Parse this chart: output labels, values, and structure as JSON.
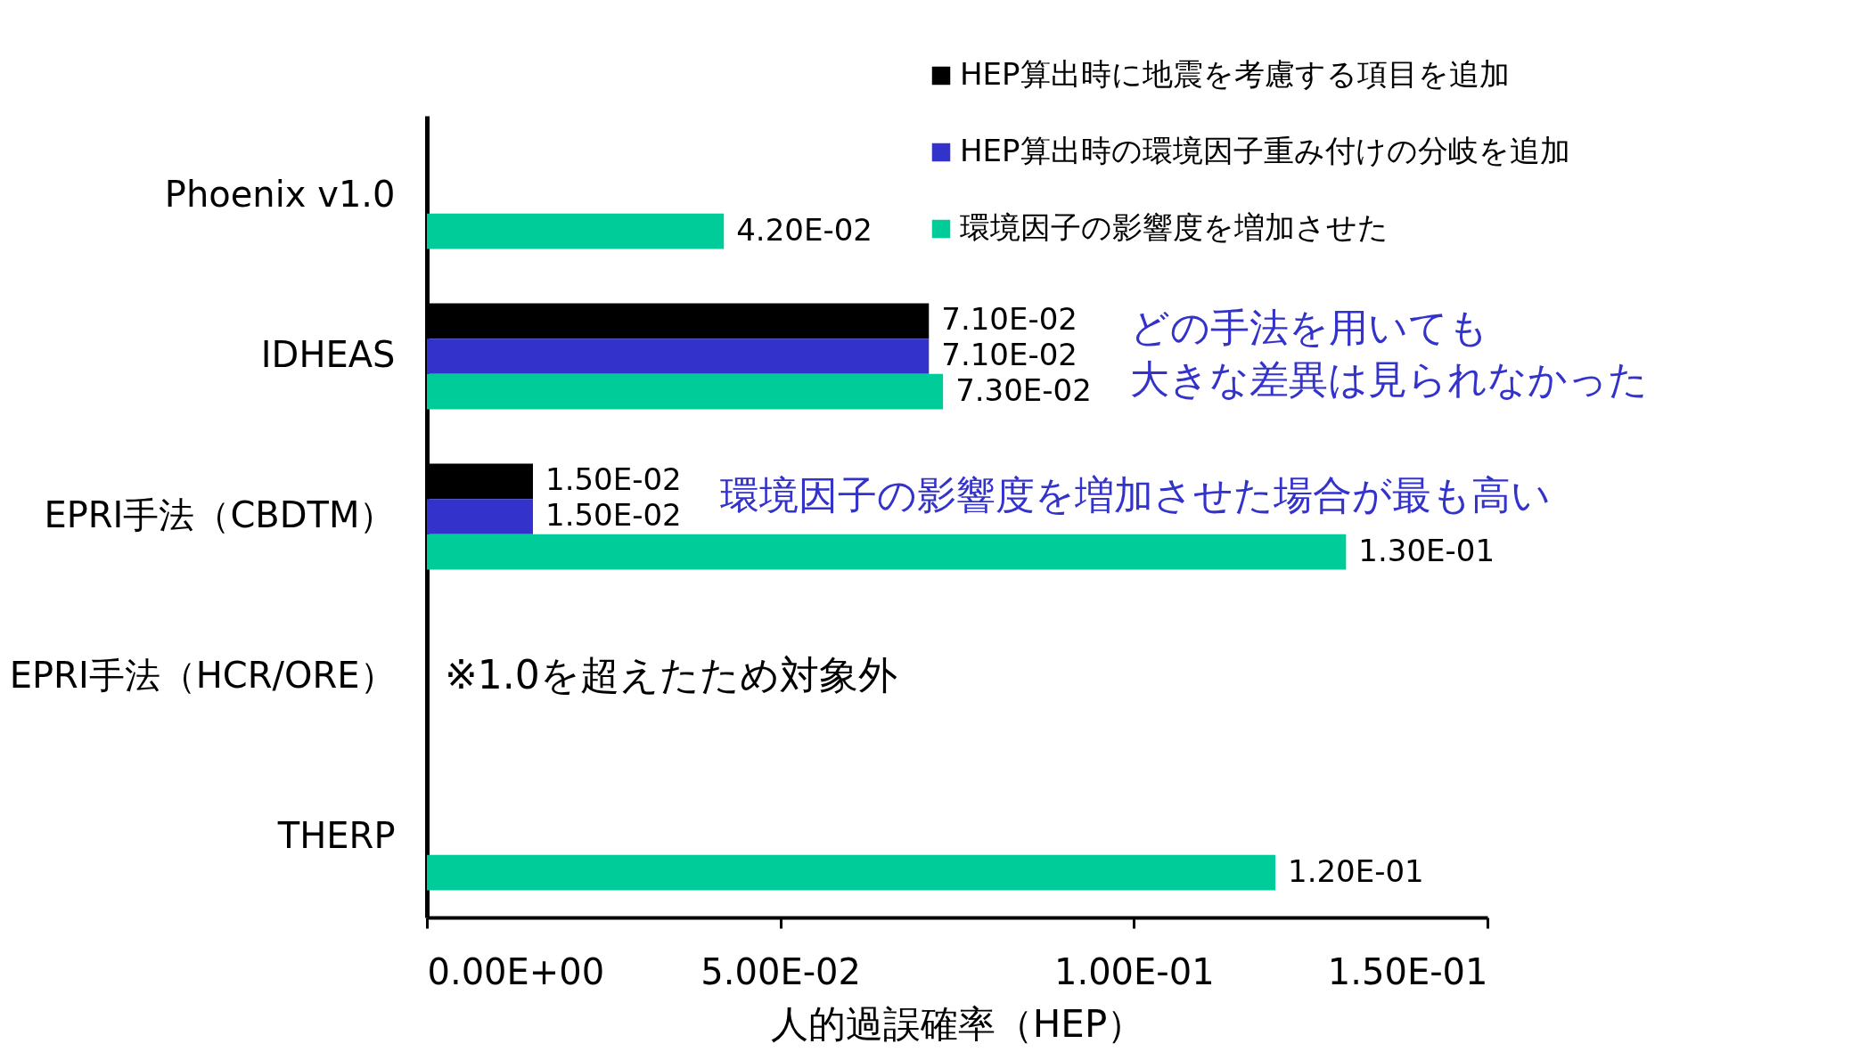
{
  "chart_data": {
    "type": "bar",
    "orientation": "horizontal",
    "xlabel": "人的過誤確率（HEP）",
    "categories": [
      "Phoenix v1.0",
      "IDHEAS",
      "EPRI手法（CBDTM）",
      "EPRI手法（HCR/ORE）",
      "THERP"
    ],
    "series": [
      {
        "name": "HEP算出時に地震を考慮する項目を追加",
        "color": "#000000",
        "values": [
          null,
          0.071,
          0.015,
          null,
          null
        ],
        "value_labels": [
          null,
          "7.10E-02",
          "1.50E-02",
          null,
          null
        ]
      },
      {
        "name": "HEP算出時の環境因子重み付けの分岐を追加",
        "color": "#3333cc",
        "values": [
          null,
          0.071,
          0.015,
          null,
          null
        ],
        "value_labels": [
          null,
          "7.10E-02",
          "1.50E-02",
          null,
          null
        ]
      },
      {
        "name": "環境因子の影響度を増加させた",
        "color": "#00cc99",
        "values": [
          0.042,
          0.073,
          0.13,
          null,
          0.12
        ],
        "value_labels": [
          "4.20E-02",
          "7.30E-02",
          "1.30E-01",
          null,
          "1.20E-01"
        ]
      }
    ],
    "xlim": [
      0,
      0.15
    ],
    "xticks": [
      {
        "value": 0,
        "label": "0.00E+00"
      },
      {
        "value": 0.05,
        "label": "5.00E-02"
      },
      {
        "value": 0.1,
        "label": "1.00E-01"
      },
      {
        "value": 0.15,
        "label": "1.50E-01"
      }
    ],
    "grid": false,
    "legend": "top right",
    "annotations": [
      "※1.0を超えたため対象外",
      "どの手法を用いても",
      "大きな差異は見られなかった",
      "環境因子の影響度を増加させた場合が最も高い"
    ]
  }
}
